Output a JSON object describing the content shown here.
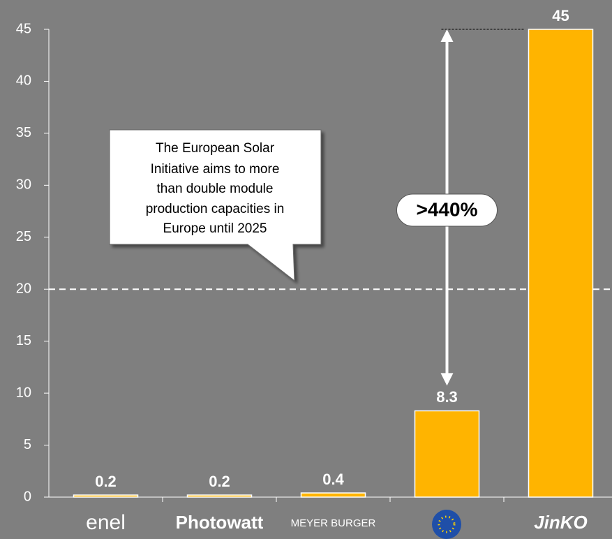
{
  "chart_data": {
    "type": "bar",
    "categories": [
      "enel",
      "Photowatt",
      "MEYER BURGER",
      null,
      "JinKO"
    ],
    "values": [
      0.2,
      0.2,
      0.4,
      8.3,
      45
    ],
    "color": "#ffb400",
    "ylim": [
      0,
      45
    ],
    "yticks": [
      0,
      5,
      10,
      15,
      20,
      25,
      30,
      35,
      40,
      45
    ],
    "reference_line": 20,
    "annotation": [
      "The European Solar",
      "Initiative aims to more",
      "than double module",
      "production capacities in",
      "Europe until 2025"
    ],
    "arrow_label": ">440%"
  }
}
